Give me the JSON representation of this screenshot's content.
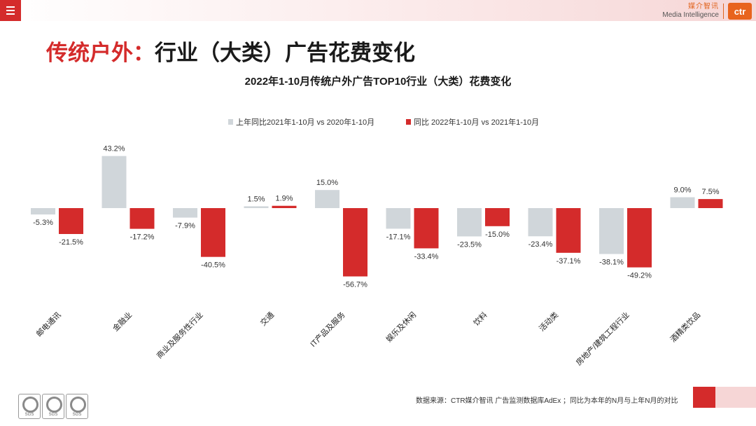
{
  "header": {
    "brand_cn": "媒介智讯",
    "brand_en": "Media Intelligence",
    "logo_text": "ctr"
  },
  "page_title": {
    "accent": "传统户外：",
    "rest": "行业（大类）广告花费变化"
  },
  "chart_data": {
    "type": "bar",
    "title": "2022年1-10月传统户外广告TOP10行业（大类）花费变化",
    "categories": [
      "邮电通讯",
      "金融业",
      "商业及服务性行业",
      "交通",
      "IT产品及服务",
      "娱乐及休闲",
      "饮料",
      "活动类",
      "房地产/建筑工程行业",
      "酒精类饮品"
    ],
    "series": [
      {
        "name": "上年同比2021年1-10月  vs 2020年1-10月",
        "color": "#d0d6da",
        "values": [
          -5.3,
          43.2,
          -7.9,
          1.5,
          15.0,
          -17.1,
          -23.5,
          -23.4,
          -38.1,
          9.0
        ],
        "labels": [
          "-5.3%",
          "43.2%",
          "-7.9%",
          "1.5%",
          "15.0%",
          "-17.1%",
          "-23.5%",
          "-23.4%",
          "-38.1%",
          "9.0%"
        ]
      },
      {
        "name": "同比 2022年1-10月  vs 2021年1-10月",
        "color": "#d42b2b",
        "values": [
          -21.5,
          -17.2,
          -40.5,
          1.9,
          -56.7,
          -33.4,
          -15.0,
          -37.1,
          -49.2,
          7.5
        ],
        "labels": [
          "-21.5%",
          "-17.2%",
          "-40.5%",
          "1.9%",
          "-56.7%",
          "-33.4%",
          "-15.0%",
          "-37.1%",
          "-49.2%",
          "7.5%"
        ]
      }
    ],
    "legend": "top-center",
    "grid": false
  },
  "footer": {
    "source": "数据来源：CTR媒介智讯 广告监测数据库AdEx ；同比为本年的N月与上年N月的对比",
    "badge_text": "SGS"
  }
}
